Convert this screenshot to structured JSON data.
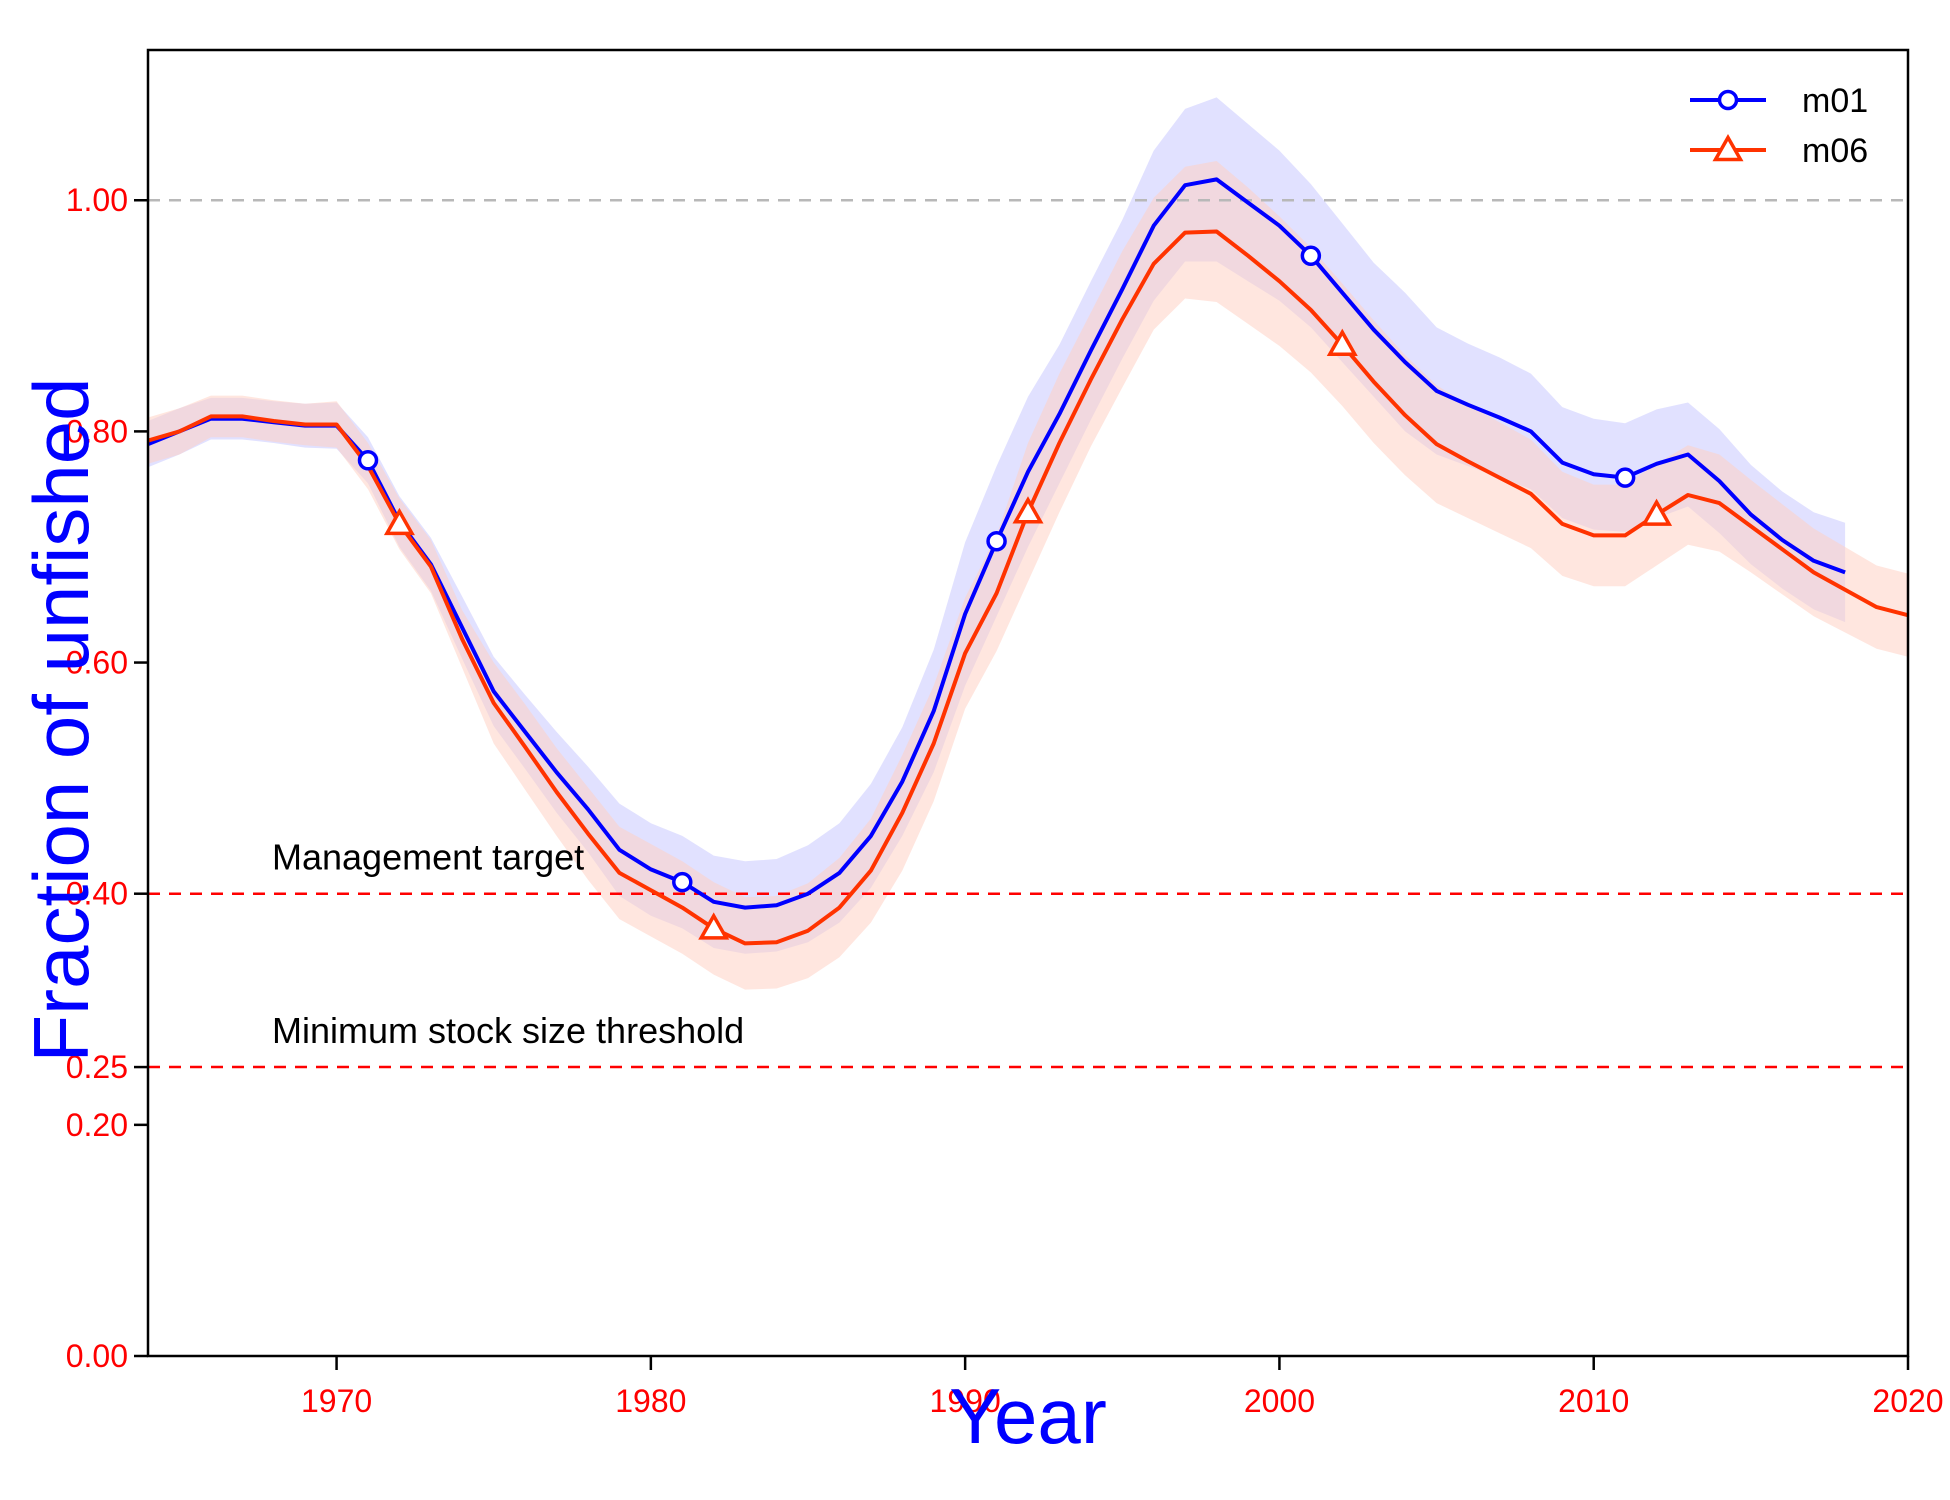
{
  "chart_data": {
    "type": "line",
    "xlabel": "Year",
    "ylabel": "Fraction of unfished",
    "xlim": [
      1964,
      2020
    ],
    "ylim": [
      0,
      1.13
    ],
    "x_ticks": [
      "1970",
      "1980",
      "1990",
      "2000",
      "2010",
      "2020"
    ],
    "y_ticks": [
      "0.00",
      "0.20",
      "0.25",
      "0.40",
      "0.60",
      "0.80",
      "1.00"
    ],
    "legend_position": "top-right",
    "colors": {
      "axis_label": "#0000ff",
      "tick_label": "#ff0000",
      "m01": "#0000ff",
      "m01_band": "#c8c8ff",
      "m06": "#ff3300",
      "m06_band": "#ffd2c4",
      "reference": "#ff0000",
      "unfished": "#b8b8b8"
    },
    "reference_lines": [
      {
        "y": 1.0,
        "label": "",
        "style": "unfished"
      },
      {
        "y": 0.4,
        "label": "Management target",
        "style": "reference"
      },
      {
        "y": 0.25,
        "label": "Minimum stock size threshold",
        "style": "reference"
      }
    ],
    "series": [
      {
        "name": "m01",
        "marker": "circle",
        "marker_years": [
          1971,
          1981,
          1991,
          2001,
          2011
        ],
        "x": [
          1963,
          1964,
          1965,
          1966,
          1967,
          1968,
          1969,
          1970,
          1971,
          1972,
          1973,
          1974,
          1975,
          1976,
          1977,
          1978,
          1979,
          1980,
          1981,
          1982,
          1983,
          1984,
          1985,
          1986,
          1987,
          1988,
          1989,
          1990,
          1991,
          1992,
          1993,
          1994,
          1995,
          1996,
          1997,
          1998,
          1999,
          2000,
          2001,
          2002,
          2003,
          2004,
          2005,
          2006,
          2007,
          2008,
          2009,
          2010,
          2011,
          2012,
          2013,
          2014,
          2015,
          2016,
          2017,
          2018
        ],
        "values": [
          0.789,
          0.789,
          0.8,
          0.811,
          0.811,
          0.808,
          0.805,
          0.805,
          0.775,
          0.722,
          0.685,
          0.63,
          0.575,
          0.54,
          0.505,
          0.473,
          0.438,
          0.421,
          0.41,
          0.393,
          0.388,
          0.39,
          0.4,
          0.418,
          0.45,
          0.497,
          0.558,
          0.642,
          0.705,
          0.765,
          0.815,
          0.87,
          0.923,
          0.978,
          1.013,
          1.018,
          0.998,
          0.978,
          0.952,
          0.92,
          0.888,
          0.86,
          0.835,
          0.823,
          0.812,
          0.8,
          0.773,
          0.763,
          0.76,
          0.772,
          0.78,
          0.757,
          0.728,
          0.706,
          0.688,
          0.678
        ],
        "lower": [
          0.769,
          0.769,
          0.78,
          0.793,
          0.793,
          0.79,
          0.786,
          0.785,
          0.755,
          0.7,
          0.662,
          0.603,
          0.545,
          0.508,
          0.47,
          0.436,
          0.398,
          0.381,
          0.37,
          0.353,
          0.348,
          0.35,
          0.358,
          0.375,
          0.405,
          0.45,
          0.505,
          0.58,
          0.64,
          0.7,
          0.755,
          0.81,
          0.863,
          0.913,
          0.947,
          0.947,
          0.93,
          0.913,
          0.89,
          0.86,
          0.83,
          0.8,
          0.78,
          0.77,
          0.76,
          0.75,
          0.725,
          0.715,
          0.713,
          0.725,
          0.735,
          0.712,
          0.685,
          0.664,
          0.646,
          0.635
        ],
        "upper": [
          0.809,
          0.809,
          0.82,
          0.829,
          0.829,
          0.826,
          0.824,
          0.825,
          0.795,
          0.744,
          0.708,
          0.657,
          0.605,
          0.572,
          0.54,
          0.51,
          0.478,
          0.461,
          0.45,
          0.433,
          0.428,
          0.43,
          0.442,
          0.461,
          0.495,
          0.544,
          0.611,
          0.704,
          0.77,
          0.83,
          0.875,
          0.93,
          0.983,
          1.043,
          1.079,
          1.089,
          1.066,
          1.043,
          1.014,
          0.98,
          0.946,
          0.92,
          0.89,
          0.876,
          0.864,
          0.85,
          0.821,
          0.811,
          0.807,
          0.819,
          0.825,
          0.802,
          0.771,
          0.748,
          0.73,
          0.721
        ]
      },
      {
        "name": "m06",
        "marker": "triangle",
        "marker_years": [
          1972,
          1982,
          1992,
          2002,
          2012
        ],
        "x": [
          1963,
          1964,
          1965,
          1966,
          1967,
          1968,
          1969,
          1970,
          1971,
          1972,
          1973,
          1974,
          1975,
          1976,
          1977,
          1978,
          1979,
          1980,
          1981,
          1982,
          1983,
          1984,
          1985,
          1986,
          1987,
          1988,
          1989,
          1990,
          1991,
          1992,
          1993,
          1994,
          1995,
          1996,
          1997,
          1998,
          1999,
          2000,
          2001,
          2002,
          2003,
          2004,
          2005,
          2006,
          2007,
          2008,
          2009,
          2010,
          2011,
          2012,
          2013,
          2014,
          2015,
          2016,
          2017,
          2018,
          2019,
          2020
        ],
        "values": [
          0.792,
          0.792,
          0.8,
          0.813,
          0.813,
          0.809,
          0.806,
          0.806,
          0.77,
          0.72,
          0.683,
          0.62,
          0.565,
          0.527,
          0.488,
          0.452,
          0.418,
          0.403,
          0.388,
          0.37,
          0.357,
          0.358,
          0.368,
          0.388,
          0.42,
          0.47,
          0.53,
          0.608,
          0.66,
          0.73,
          0.79,
          0.845,
          0.897,
          0.945,
          0.972,
          0.973,
          0.952,
          0.93,
          0.905,
          0.875,
          0.843,
          0.814,
          0.789,
          0.774,
          0.76,
          0.746,
          0.72,
          0.71,
          0.71,
          0.728,
          0.745,
          0.738,
          0.718,
          0.698,
          0.678,
          0.663,
          0.648,
          0.641
        ],
        "lower": [
          0.772,
          0.772,
          0.78,
          0.795,
          0.795,
          0.791,
          0.788,
          0.786,
          0.75,
          0.698,
          0.66,
          0.595,
          0.53,
          0.49,
          0.45,
          0.412,
          0.378,
          0.363,
          0.348,
          0.33,
          0.317,
          0.318,
          0.327,
          0.345,
          0.375,
          0.42,
          0.48,
          0.56,
          0.61,
          0.67,
          0.73,
          0.787,
          0.838,
          0.888,
          0.915,
          0.912,
          0.893,
          0.874,
          0.851,
          0.822,
          0.79,
          0.762,
          0.738,
          0.725,
          0.712,
          0.699,
          0.675,
          0.666,
          0.666,
          0.684,
          0.702,
          0.696,
          0.678,
          0.659,
          0.64,
          0.626,
          0.612,
          0.605
        ],
        "upper": [
          0.812,
          0.812,
          0.82,
          0.831,
          0.831,
          0.827,
          0.824,
          0.826,
          0.79,
          0.742,
          0.706,
          0.645,
          0.6,
          0.564,
          0.526,
          0.492,
          0.458,
          0.443,
          0.428,
          0.41,
          0.397,
          0.398,
          0.409,
          0.431,
          0.465,
          0.52,
          0.58,
          0.656,
          0.71,
          0.79,
          0.85,
          0.903,
          0.956,
          1.002,
          1.029,
          1.034,
          1.011,
          0.986,
          0.959,
          0.928,
          0.896,
          0.866,
          0.84,
          0.823,
          0.808,
          0.793,
          0.765,
          0.754,
          0.754,
          0.772,
          0.788,
          0.78,
          0.758,
          0.737,
          0.716,
          0.7,
          0.684,
          0.677
        ]
      }
    ]
  }
}
